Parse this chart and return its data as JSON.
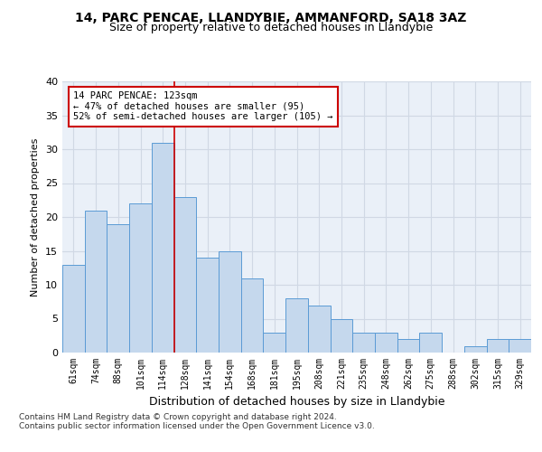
{
  "title_line1": "14, PARC PENCAE, LLANDYBIE, AMMANFORD, SA18 3AZ",
  "title_line2": "Size of property relative to detached houses in Llandybie",
  "xlabel": "Distribution of detached houses by size in Llandybie",
  "ylabel": "Number of detached properties",
  "categories": [
    "61sqm",
    "74sqm",
    "88sqm",
    "101sqm",
    "114sqm",
    "128sqm",
    "141sqm",
    "154sqm",
    "168sqm",
    "181sqm",
    "195sqm",
    "208sqm",
    "221sqm",
    "235sqm",
    "248sqm",
    "262sqm",
    "275sqm",
    "288sqm",
    "302sqm",
    "315sqm",
    "329sqm"
  ],
  "values": [
    13,
    21,
    19,
    22,
    31,
    23,
    14,
    15,
    11,
    3,
    8,
    7,
    5,
    3,
    3,
    2,
    3,
    0,
    1,
    2,
    2
  ],
  "bar_color": "#c5d8ed",
  "bar_edge_color": "#5b9bd5",
  "grid_color": "#d0d8e4",
  "background_color": "#eaf0f8",
  "annotation_line1": "14 PARC PENCAE: 123sqm",
  "annotation_line2": "← 47% of detached houses are smaller (95)",
  "annotation_line3": "52% of semi-detached houses are larger (105) →",
  "annotation_box_color": "#ffffff",
  "annotation_box_edge_color": "#cc0000",
  "red_line_x": 4.5,
  "ylim": [
    0,
    40
  ],
  "yticks": [
    0,
    5,
    10,
    15,
    20,
    25,
    30,
    35,
    40
  ],
  "footer_line1": "Contains HM Land Registry data © Crown copyright and database right 2024.",
  "footer_line2": "Contains public sector information licensed under the Open Government Licence v3.0."
}
